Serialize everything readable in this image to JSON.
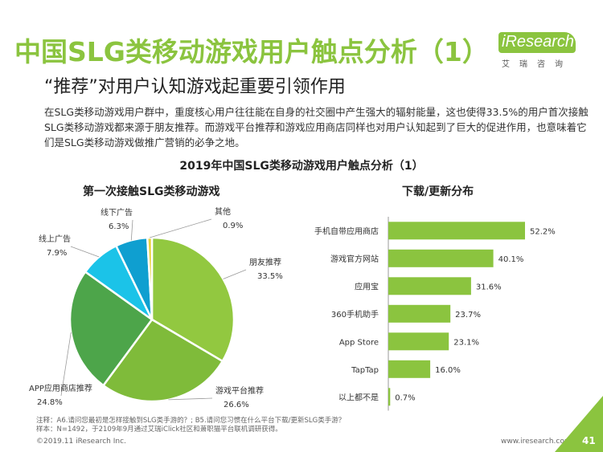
{
  "header": {
    "title": "中国SLG类移动游戏用户触点分析（1）",
    "subtitle": "“推荐”对用户认知游戏起重要引领作用",
    "logo_main": "iResearch",
    "logo_sub": "艾瑞咨询"
  },
  "description": "在SLG类移动游戏用户群中，重度核心用户往往能在自身的社交圈中产生强大的辐射能量，这也使得33.5%的用户首次接触SLG类移动游戏都来源于朋友推荐。而游戏平台推荐和游戏应用商店同样也对用户认知起到了巨大的促进作用，也意味着它们是SLG类移动游戏做推广营销的必争之地。",
  "chart_title": "2019年中国SLG类移动游戏用户触点分析（1）",
  "colors": {
    "title_green": "#8bc43f",
    "bar_green": "#8bc43f"
  },
  "chart_data": [
    {
      "type": "pie",
      "title": "第一次接触SLG类移动游戏",
      "slices": [
        {
          "label": "朋友推荐",
          "value": 33.5,
          "value_label": "33.5%",
          "color": "#92c840"
        },
        {
          "label": "游戏平台推荐",
          "value": 26.6,
          "value_label": "26.6%",
          "color": "#7fbb3a"
        },
        {
          "label": "APP应用商店推荐",
          "value": 24.8,
          "value_label": "24.8%",
          "color": "#4da54a"
        },
        {
          "label": "线上广告",
          "value": 7.9,
          "value_label": "7.9%",
          "color": "#1bc3e8"
        },
        {
          "label": "线下广告",
          "value": 6.3,
          "value_label": "6.3%",
          "color": "#0f9fd0"
        },
        {
          "label": "其他",
          "value": 0.9,
          "value_label": "0.9%",
          "color": "#e8d23c"
        }
      ]
    },
    {
      "type": "bar",
      "orientation": "horizontal",
      "title": "下载/更新分布",
      "categories": [
        "手机自带应用商店",
        "游戏官方网站",
        "应用宝",
        "360手机助手",
        "App Store",
        "TapTap",
        "以上都不是"
      ],
      "values": [
        52.2,
        40.1,
        31.6,
        23.7,
        23.1,
        16.0,
        0.7
      ],
      "value_labels": [
        "52.2%",
        "40.1%",
        "31.6%",
        "23.7%",
        "23.1%",
        "16.0%",
        "0.7%"
      ],
      "xlim": [
        0,
        60
      ],
      "color": "#8bc43f"
    }
  ],
  "footer": {
    "note_line1": "注释：A6.请问您最初是怎样接触到SLG类手游的？; B5.请问您习惯在什么平台下载/更新SLG类手游？",
    "note_line2": "样本：N=1492，于2109年9月通过艾瑞iClick社区和萧职猫平台联机调研获得。",
    "copyright": "©2019.11 iResearch Inc.",
    "website": "www.iresearch.com.cn",
    "page_number": "41"
  }
}
